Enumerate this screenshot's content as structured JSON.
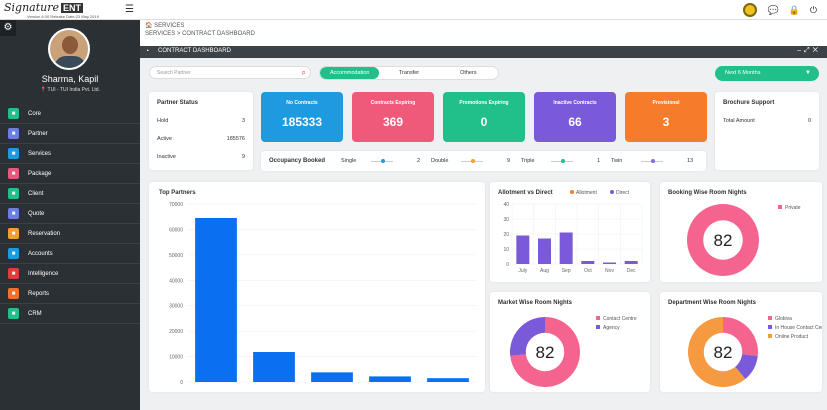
{
  "app": {
    "logo_text": "Signature",
    "logo_badge": "ENT",
    "logo_sub": "Version 6.00   Release Date:23 May 2019"
  },
  "user": {
    "name": "Sharma, Kapil",
    "company": "TUI - TUI India Pvt. Ltd."
  },
  "sidebar": {
    "items": [
      {
        "label": "Core",
        "color": "#21c08b",
        "icon": "core-icon"
      },
      {
        "label": "Partner",
        "color": "#6c7ee1",
        "icon": "partner-icon"
      },
      {
        "label": "Services",
        "color": "#1e9be0",
        "icon": "services-icon"
      },
      {
        "label": "Package",
        "color": "#e35a7a",
        "icon": "package-icon"
      },
      {
        "label": "Client",
        "color": "#21c08b",
        "icon": "client-icon"
      },
      {
        "label": "Quote",
        "color": "#6c7ee1",
        "icon": "quote-icon"
      },
      {
        "label": "Reservation",
        "color": "#f0a030",
        "icon": "reservation-icon"
      },
      {
        "label": "Accounts",
        "color": "#1e9be0",
        "icon": "accounts-icon"
      },
      {
        "label": "Intelligence",
        "color": "#e33b3b",
        "icon": "intelligence-icon"
      },
      {
        "label": "Reports",
        "color": "#f07030",
        "icon": "reports-icon"
      },
      {
        "label": "CRM",
        "color": "#21c08b",
        "icon": "crm-icon"
      }
    ]
  },
  "breadcrumb": {
    "section": "SERVICES",
    "path": "SERVICES > CONTRACT DASHBOARD"
  },
  "dashboard": {
    "title": "CONTRACT DASHBOARD",
    "search_placeholder": "Search Partner",
    "tabs": [
      "Accommodation",
      "Transfer",
      "Others"
    ],
    "active_tab": "Accommodation",
    "period": "Next 6 Months"
  },
  "partner_status": {
    "title": "Partner Status",
    "rows": [
      {
        "label": "Hold",
        "value": "3"
      },
      {
        "label": "Active",
        "value": "185576"
      },
      {
        "label": "Inactive",
        "value": "9"
      }
    ]
  },
  "tiles": [
    {
      "label": "No Contracts",
      "value": "185333",
      "color": "#1e9be0"
    },
    {
      "label": "Contracts Expiring",
      "value": "369",
      "color": "#f05a7a"
    },
    {
      "label": "Promotions Expiring",
      "value": "0",
      "color": "#21c08b"
    },
    {
      "label": "Inactive Contracts",
      "value": "66",
      "color": "#7a5ad8"
    },
    {
      "label": "Provisional",
      "value": "3",
      "color": "#f57c2a"
    }
  ],
  "brochure": {
    "title": "Brochure Support",
    "label": "Total Amount",
    "value": "0"
  },
  "occupancy": {
    "title": "Occupancy Booked",
    "items": [
      {
        "label": "Single",
        "value": "2",
        "color": "#1e9be0"
      },
      {
        "label": "Double",
        "value": "9",
        "color": "#f5a030"
      },
      {
        "label": "Triple",
        "value": "1",
        "color": "#21c08b"
      },
      {
        "label": "Twin",
        "value": "13",
        "color": "#8a6ae0"
      }
    ]
  },
  "chart_data": [
    {
      "type": "bar",
      "title": "Top Partners",
      "categories": [
        "",
        "",
        "",
        "",
        ""
      ],
      "values": [
        64500,
        11800,
        3800,
        2200,
        1500
      ],
      "yticks": [
        "0",
        "10000",
        "20000",
        "30000",
        "40000",
        "50000",
        "60000",
        "70000"
      ],
      "ylim": [
        0,
        70000
      ],
      "color": "#0a6ff0"
    },
    {
      "type": "bar",
      "title": "Allotment vs Direct",
      "categories": [
        "July",
        "Aug",
        "Sep",
        "Oct",
        "Nov",
        "Dec"
      ],
      "series": [
        {
          "name": "Allotment",
          "values": [
            0,
            0,
            0,
            0,
            0,
            0
          ],
          "color": "#f57c2a"
        },
        {
          "name": "Direct",
          "values": [
            19,
            17,
            21,
            2,
            1,
            2
          ],
          "color": "#7a5ad8"
        }
      ],
      "yticks": [
        "0",
        "10",
        "20",
        "30",
        "40"
      ],
      "ylim": [
        0,
        40
      ]
    },
    {
      "type": "pie",
      "title": "Booking Wise Room Nights",
      "total": "82",
      "slices": [
        {
          "name": "Private",
          "value": 82,
          "color": "#f5648f"
        }
      ]
    },
    {
      "type": "pie",
      "title": "Market Wise Room Nights",
      "total": "82",
      "slices": [
        {
          "name": "Contact Centre",
          "value": 60,
          "color": "#f5648f"
        },
        {
          "name": "Agency",
          "value": 22,
          "color": "#7a5ad8"
        }
      ]
    },
    {
      "type": "pie",
      "title": "Department Wise Room Nights",
      "total": "82",
      "slices": [
        {
          "name": "Globiva",
          "value": 22,
          "color": "#f5648f"
        },
        {
          "name": "In House Contact Centre",
          "value": 10,
          "color": "#7a5ad8"
        },
        {
          "name": "Online Product",
          "value": 50,
          "color": "#f59a40"
        }
      ]
    }
  ]
}
